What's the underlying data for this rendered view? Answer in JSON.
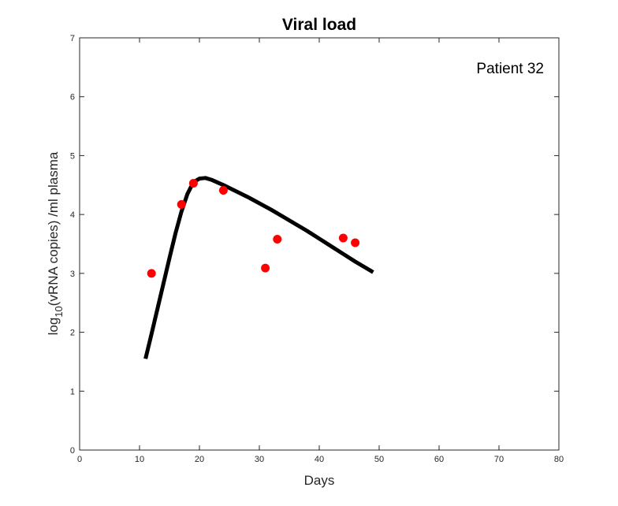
{
  "chart_data": {
    "type": "line",
    "title": "Viral load",
    "xlabel": "Days",
    "ylabel_base": "log",
    "ylabel_sub": "10",
    "ylabel_rest": "(vRNA copies) /ml plasma",
    "xlim": [
      0,
      80
    ],
    "ylim": [
      0,
      7
    ],
    "x_ticks": [
      0,
      10,
      20,
      30,
      40,
      50,
      60,
      70,
      80
    ],
    "y_ticks": [
      0,
      1,
      2,
      3,
      4,
      5,
      6,
      7
    ],
    "annotation": "Patient 32",
    "grid": false,
    "series": [
      {
        "kind": "line",
        "color": "#000000",
        "x": [
          11,
          12,
          13,
          14,
          15,
          16,
          17,
          18,
          19,
          20,
          21,
          22,
          24,
          26,
          28,
          30,
          32,
          34,
          36,
          38,
          40,
          42,
          44,
          46,
          48,
          49
        ],
        "y": [
          1.55,
          1.97,
          2.4,
          2.83,
          3.26,
          3.68,
          4.05,
          4.35,
          4.55,
          4.61,
          4.62,
          4.59,
          4.5,
          4.4,
          4.3,
          4.19,
          4.08,
          3.96,
          3.84,
          3.72,
          3.59,
          3.46,
          3.33,
          3.2,
          3.08,
          3.02
        ]
      },
      {
        "kind": "scatter",
        "color": "#ff0000",
        "x": [
          12,
          17,
          19,
          24,
          31,
          33,
          44,
          46
        ],
        "y": [
          3.0,
          4.17,
          4.53,
          4.41,
          3.09,
          3.58,
          3.6,
          3.52
        ]
      }
    ]
  }
}
